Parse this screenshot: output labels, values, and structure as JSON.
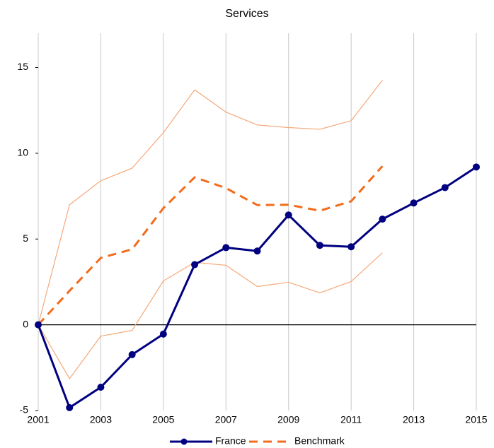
{
  "chart_data": {
    "type": "line",
    "title": "Services",
    "x": [
      2001,
      2002,
      2003,
      2004,
      2005,
      2006,
      2007,
      2008,
      2009,
      2010,
      2011,
      2012,
      2013,
      2014,
      2015
    ],
    "series": [
      {
        "color": "#f5a878",
        "style": "thin",
        "values": [
          0,
          7.0,
          8.4,
          9.13,
          11.2,
          13.7,
          12.4,
          11.65,
          11.5,
          11.4,
          11.9,
          14.26,
          null,
          null,
          null
        ]
      },
      {
        "color": "#f5a878",
        "style": "thin",
        "values": [
          0,
          -3.14,
          -0.66,
          -0.33,
          2.56,
          3.64,
          3.47,
          2.23,
          2.48,
          1.86,
          2.52,
          4.2,
          null,
          null,
          null
        ]
      },
      {
        "name": "Benchmark",
        "color": "#f26c1c",
        "style": "dashed",
        "values": [
          0,
          1.98,
          3.9,
          4.4,
          6.8,
          8.6,
          7.97,
          6.98,
          7.0,
          6.65,
          7.2,
          9.25,
          null,
          null,
          null
        ]
      },
      {
        "name": "France",
        "color": "#000080",
        "style": "solid",
        "marker": true,
        "values": [
          0,
          -4.83,
          -3.64,
          -1.74,
          -0.54,
          3.51,
          4.5,
          4.3,
          6.4,
          4.63,
          4.55,
          6.16,
          7.1,
          8.0,
          9.2
        ]
      }
    ],
    "xlim": [
      2001,
      2015
    ],
    "xticks": [
      2001,
      2003,
      2005,
      2007,
      2009,
      2011,
      2013,
      2015
    ],
    "ylim": [
      -5,
      17
    ],
    "yticks": [
      -5,
      0,
      5,
      10,
      15
    ],
    "grid": "x",
    "zero_line": true,
    "legend": "bottom"
  }
}
